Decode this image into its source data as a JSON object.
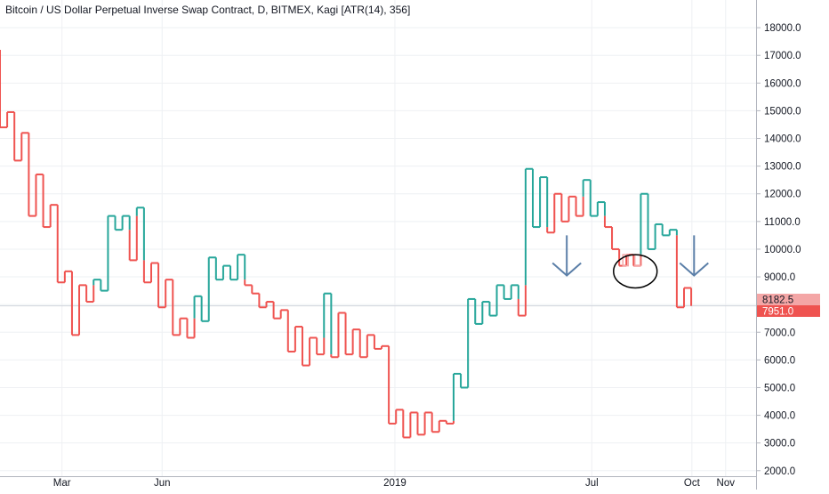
{
  "chart_data": {
    "type": "kagi",
    "title": "Bitcoin / US Dollar Perpetual Inverse Swap Contract, D, BITMEX, Kagi [ATR(14), 356]",
    "colors": {
      "up": "#26a69a",
      "down": "#ef5350",
      "ghost": "#f4a6a6",
      "grid": "#eef0f3",
      "annotation": "#5b7fa8"
    },
    "ylim": [
      1800,
      19000
    ],
    "xlim": [
      "2018-01-03",
      "2019-11-29"
    ],
    "y_ticks": [
      2000,
      3000,
      4000,
      5000,
      6000,
      7000,
      8000,
      9000,
      10000,
      11000,
      12000,
      13000,
      14000,
      15000,
      16000,
      17000,
      18000
    ],
    "y_tick_labels": [
      "2000.0",
      "3000.0",
      "4000.0",
      "5000.0",
      "6000.0",
      "7000.0",
      "8000.0",
      "9000.0",
      "10000.0",
      "11000.0",
      "12000.0",
      "13000.0",
      "14000.0",
      "15000.0",
      "16000.0",
      "17000.0",
      "18000.0"
    ],
    "x_ticks": [
      {
        "label": "Mar",
        "date": "2018-03-01"
      },
      {
        "label": "Jun",
        "date": "2018-06-01"
      },
      {
        "label": "2019",
        "date": "2019-01-01"
      },
      {
        "label": "Jul",
        "date": "2019-07-01"
      },
      {
        "label": "Oct",
        "date": "2019-10-01"
      },
      {
        "label": "Nov",
        "date": "2019-11-01"
      }
    ],
    "price_labels": [
      {
        "value": 8182.5,
        "text": "8182.5",
        "color": "#f4a6a6"
      },
      {
        "value": 7951.0,
        "text": "7951.0",
        "color": "#ef5350"
      }
    ],
    "current_price": 7951.0,
    "kagi": {
      "start_date": "2018-01-03",
      "end_date": "2019-10-07",
      "start_value": 17200,
      "reversals": [
        14400,
        14950,
        13200,
        14200,
        11200,
        12700,
        10800,
        11600,
        8800,
        9200,
        6900,
        8700,
        8100,
        8900,
        8500,
        11200,
        10700,
        11200,
        9600,
        11500,
        8800,
        9500,
        7900,
        8900,
        6900,
        7500,
        6800,
        8300,
        7400,
        9700,
        8900,
        9400,
        8900,
        9800,
        8700,
        8400,
        7900,
        8100,
        7500,
        7800,
        6300,
        7200,
        5800,
        6800,
        6200,
        8400,
        6100,
        7700,
        6200,
        7100,
        6100,
        6900,
        6400,
        6500,
        3700,
        4200,
        3200,
        4100,
        3300,
        4100,
        3400,
        3800,
        3700,
        5500,
        5000,
        8200,
        7300,
        8100,
        7600,
        8700,
        8200,
        8700,
        7600,
        12900,
        10800,
        12600,
        10600,
        12000,
        11000,
        11900,
        11200,
        12500,
        11200,
        11700,
        10800,
        10000,
        9400,
        9800,
        9400,
        12000,
        10000,
        10900,
        10500,
        10700,
        7900,
        8600,
        7951
      ]
    },
    "ghost_segments": [
      {
        "x_date": "2019-08-01",
        "top": 9800,
        "bottom": 9400
      },
      {
        "x_date": "2019-08-12",
        "top": 9800,
        "bottom": 9400
      }
    ],
    "annotations": {
      "ellipse": {
        "cx_date": "2019-08-10",
        "cy": 9200,
        "rx_days": 20,
        "ry": 600
      },
      "arrows": [
        {
          "date": "2019-06-08",
          "from": 10500,
          "to": 9050
        },
        {
          "date": "2019-10-03",
          "from": 10500,
          "to": 9050
        }
      ]
    },
    "legend": "none",
    "grid": true
  }
}
